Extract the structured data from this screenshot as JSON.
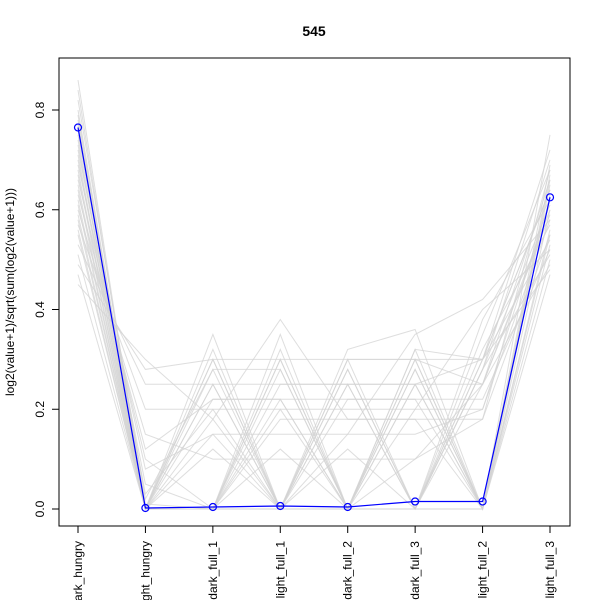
{
  "chart_data": {
    "type": "line",
    "title": "545",
    "xlabel": "",
    "ylabel": "log2(value+1)/sqrt(sum(log2(value+1)))",
    "categories": [
      "dark_hungry",
      "light_hungry",
      "dark_full_1",
      "light_full_1",
      "dark_full_2",
      "dark_full_3",
      "light_full_2",
      "light_full_3"
    ],
    "category_labels_visible": [
      "ark_hungry",
      "ght_hungry",
      "dark_full_1",
      "light_full_1",
      "dark_full_2",
      "dark_full_3",
      "light_full_2",
      "light_full_3"
    ],
    "yticks": [
      "0.0",
      "0.2",
      "0.4",
      "0.6",
      "0.8"
    ],
    "ylim": [
      -0.03,
      0.87
    ],
    "grid": false,
    "legend": "none",
    "series": [
      {
        "values": [
          0.765,
          0.002,
          0.004,
          0.006,
          0.004,
          0.015,
          0.015,
          0.625
        ],
        "color": "#0000ff",
        "markers": "open-circle"
      }
    ],
    "background_series": {
      "description_color": "#d3d3d3",
      "lines": [
        [
          0.86,
          0.0,
          0.3,
          0.0,
          0.0,
          0.3,
          0.0,
          0.75
        ],
        [
          0.84,
          0.0,
          0.0,
          0.32,
          0.0,
          0.0,
          0.3,
          0.72
        ],
        [
          0.82,
          0.02,
          0.28,
          0.0,
          0.28,
          0.0,
          0.28,
          0.7
        ],
        [
          0.8,
          0.0,
          0.0,
          0.3,
          0.0,
          0.32,
          0.0,
          0.69
        ],
        [
          0.79,
          0.0,
          0.25,
          0.0,
          0.25,
          0.0,
          0.35,
          0.68
        ],
        [
          0.78,
          0.01,
          0.0,
          0.28,
          0.0,
          0.28,
          0.0,
          0.67
        ],
        [
          0.77,
          0.0,
          0.22,
          0.22,
          0.0,
          0.0,
          0.25,
          0.66
        ],
        [
          0.76,
          0.0,
          0.0,
          0.0,
          0.3,
          0.3,
          0.0,
          0.65
        ],
        [
          0.75,
          0.03,
          0.2,
          0.0,
          0.0,
          0.25,
          0.3,
          0.64
        ],
        [
          0.74,
          0.0,
          0.0,
          0.25,
          0.25,
          0.0,
          0.0,
          0.63
        ],
        [
          0.73,
          0.0,
          0.18,
          0.0,
          0.0,
          0.2,
          0.2,
          0.62
        ],
        [
          0.72,
          0.05,
          0.0,
          0.2,
          0.0,
          0.0,
          0.28,
          0.61
        ],
        [
          0.71,
          0.0,
          0.3,
          0.0,
          0.22,
          0.22,
          0.0,
          0.6
        ],
        [
          0.7,
          0.0,
          0.0,
          0.0,
          0.0,
          0.3,
          0.25,
          0.59
        ],
        [
          0.69,
          0.08,
          0.15,
          0.15,
          0.15,
          0.15,
          0.2,
          0.58
        ],
        [
          0.68,
          0.0,
          0.0,
          0.3,
          0.0,
          0.0,
          0.32,
          0.57
        ],
        [
          0.67,
          0.0,
          0.25,
          0.0,
          0.25,
          0.25,
          0.0,
          0.56
        ],
        [
          0.66,
          0.1,
          0.0,
          0.12,
          0.0,
          0.1,
          0.18,
          0.55
        ],
        [
          0.65,
          0.0,
          0.12,
          0.0,
          0.12,
          0.0,
          0.3,
          0.54
        ],
        [
          0.64,
          0.0,
          0.0,
          0.18,
          0.18,
          0.18,
          0.0,
          0.53
        ],
        [
          0.63,
          0.12,
          0.22,
          0.22,
          0.22,
          0.22,
          0.22,
          0.52
        ],
        [
          0.62,
          0.0,
          0.0,
          0.0,
          0.3,
          0.0,
          0.28,
          0.51
        ],
        [
          0.61,
          0.0,
          0.28,
          0.28,
          0.0,
          0.28,
          0.0,
          0.5
        ],
        [
          0.6,
          0.15,
          0.1,
          0.1,
          0.1,
          0.1,
          0.25,
          0.49
        ],
        [
          0.59,
          0.0,
          0.0,
          0.22,
          0.0,
          0.32,
          0.3,
          0.48
        ],
        [
          0.58,
          0.0,
          0.32,
          0.0,
          0.28,
          0.0,
          0.0,
          0.47
        ],
        [
          0.57,
          0.2,
          0.2,
          0.2,
          0.2,
          0.2,
          0.4,
          0.52
        ],
        [
          0.56,
          0.0,
          0.0,
          0.35,
          0.0,
          0.25,
          0.0,
          0.55
        ],
        [
          0.55,
          0.0,
          0.15,
          0.0,
          0.15,
          0.35,
          0.42,
          0.58
        ],
        [
          0.53,
          0.25,
          0.25,
          0.25,
          0.25,
          0.25,
          0.25,
          0.6
        ],
        [
          0.51,
          0.0,
          0.35,
          0.0,
          0.0,
          0.0,
          0.38,
          0.62
        ],
        [
          0.49,
          0.28,
          0.3,
          0.3,
          0.3,
          0.3,
          0.3,
          0.64
        ],
        [
          0.47,
          0.0,
          0.0,
          0.0,
          0.32,
          0.36,
          0.0,
          0.66
        ],
        [
          0.45,
          0.3,
          0.18,
          0.38,
          0.18,
          0.18,
          0.18,
          0.68
        ]
      ]
    }
  }
}
